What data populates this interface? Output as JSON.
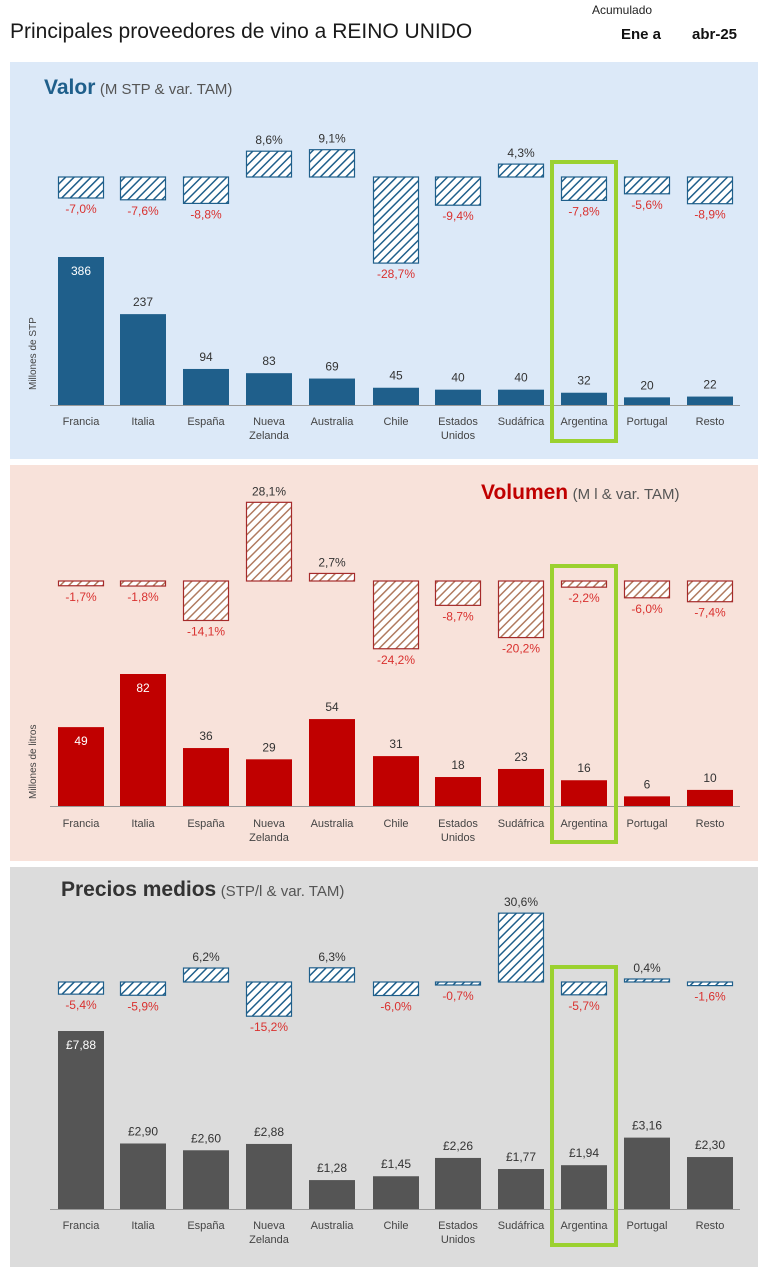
{
  "header": {
    "title": "Principales proveedores de vino a REINO UNIDO",
    "accumulated_label": "Acumulado",
    "period_from": "Ene a",
    "period_to": "abr-25"
  },
  "colors": {
    "valor": "#1f5f8b",
    "volumen": "#c00000",
    "precio": "#555555",
    "negative_label": "#d9312f",
    "highlight": "#9bd12f"
  },
  "highlight_category": "Argentina",
  "chart_data": [
    {
      "type": "bar",
      "panel": "valor",
      "title": "Valor",
      "subtitle": "(M STP & var. TAM)",
      "ylabel": "Millones de STP",
      "categories": [
        "Francia",
        "Italia",
        "España",
        "Nueva\nZelanda",
        "Australia",
        "Chile",
        "Estados\nUnidos",
        "Sudáfrica",
        "Argentina",
        "Portugal",
        "Resto"
      ],
      "values": [
        386,
        237,
        94,
        83,
        69,
        45,
        40,
        40,
        32,
        20,
        22
      ],
      "value_labels": [
        "386",
        "237",
        "94",
        "83",
        "69",
        "45",
        "40",
        "40",
        "32",
        "20",
        "22"
      ],
      "variation": [
        -7.0,
        -7.6,
        -8.8,
        8.6,
        9.1,
        -28.7,
        -9.4,
        4.3,
        -7.8,
        -5.6,
        -8.9
      ],
      "variation_labels": [
        "-7,0%",
        "-7,6%",
        "-8,8%",
        "8,6%",
        "9,1%",
        "-28,7%",
        "-9,4%",
        "4,3%",
        "-7,8%",
        "-5,6%",
        "-8,9%"
      ]
    },
    {
      "type": "bar",
      "panel": "volumen",
      "title": "Volumen",
      "subtitle": "(M l & var. TAM)",
      "ylabel": "Millones de litros",
      "categories": [
        "Francia",
        "Italia",
        "España",
        "Nueva\nZelanda",
        "Australia",
        "Chile",
        "Estados\nUnidos",
        "Sudáfrica",
        "Argentina",
        "Portugal",
        "Resto"
      ],
      "values": [
        49,
        82,
        36,
        29,
        54,
        31,
        18,
        23,
        16,
        6,
        10
      ],
      "value_labels": [
        "49",
        "82",
        "36",
        "29",
        "54",
        "31",
        "18",
        "23",
        "16",
        "6",
        "10"
      ],
      "variation": [
        -1.7,
        -1.8,
        -14.1,
        28.1,
        2.7,
        -24.2,
        -8.7,
        -20.2,
        -2.2,
        -6.0,
        -7.4
      ],
      "variation_labels": [
        "-1,7%",
        "-1,8%",
        "-14,1%",
        "28,1%",
        "2,7%",
        "-24,2%",
        "-8,7%",
        "-20,2%",
        "-2,2%",
        "-6,0%",
        "-7,4%"
      ]
    },
    {
      "type": "bar",
      "panel": "precio",
      "title": "Precios medios",
      "subtitle": "(STP/l & var. TAM)",
      "ylabel": "",
      "categories": [
        "Francia",
        "Italia",
        "España",
        "Nueva\nZelanda",
        "Australia",
        "Chile",
        "Estados\nUnidos",
        "Sudáfrica",
        "Argentina",
        "Portugal",
        "Resto"
      ],
      "values": [
        7.88,
        2.9,
        2.6,
        2.88,
        1.28,
        1.45,
        2.26,
        1.77,
        1.94,
        3.16,
        2.3
      ],
      "value_labels": [
        "£7,88",
        "£2,90",
        "£2,60",
        "£2,88",
        "£1,28",
        "£1,45",
        "£2,26",
        "£1,77",
        "£1,94",
        "£3,16",
        "£2,30"
      ],
      "variation": [
        -5.4,
        -5.9,
        6.2,
        -15.2,
        6.3,
        -6.0,
        -0.7,
        30.6,
        -5.7,
        0.4,
        -1.6
      ],
      "variation_labels": [
        "-5,4%",
        "-5,9%",
        "6,2%",
        "-15,2%",
        "6,3%",
        "-6,0%",
        "-0,7%",
        "30,6%",
        "-5,7%",
        "0,4%",
        "-1,6%"
      ]
    }
  ]
}
